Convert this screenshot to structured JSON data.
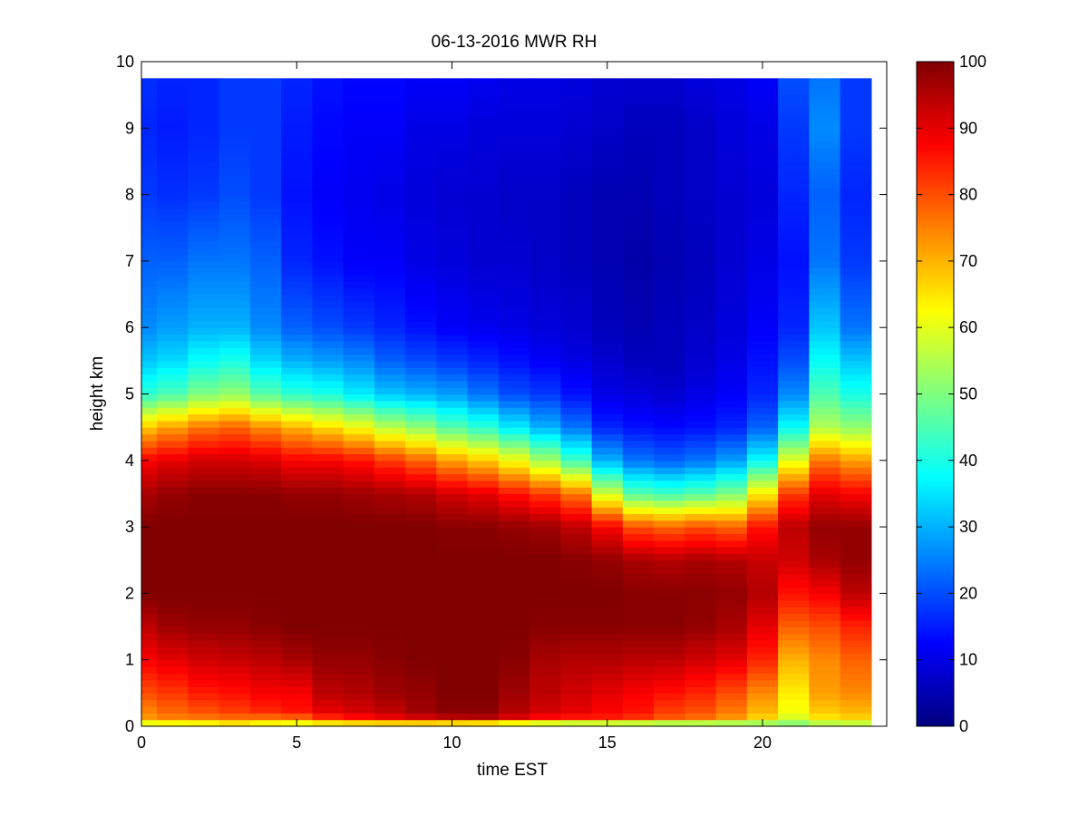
{
  "chart_data": {
    "type": "heatmap",
    "title": "06-13-2016 MWR RH",
    "xlabel": "time EST",
    "ylabel": "height km",
    "xlim": [
      0,
      24
    ],
    "ylim": [
      0,
      10
    ],
    "x_ticks": [
      "0",
      "5",
      "10",
      "15",
      "20"
    ],
    "y_ticks": [
      "0",
      "1",
      "2",
      "3",
      "4",
      "5",
      "6",
      "7",
      "8",
      "9",
      "10"
    ],
    "colorbar": {
      "range": [
        0,
        100
      ],
      "ticks": [
        "0",
        "10",
        "20",
        "30",
        "40",
        "50",
        "60",
        "70",
        "80",
        "90",
        "100"
      ],
      "colormap": "jet"
    },
    "x_bin_width_h": 1,
    "data_top_km": 9.75,
    "note_profiles": "Each column is one hourly RH profile (%) given at reference heights in km; intermediate heights are interpolated.",
    "profile_heights_km": [
      0,
      0.1,
      0.25,
      0.5,
      1,
      1.5,
      2,
      2.5,
      3,
      3.5,
      4,
      4.5,
      5,
      5.5,
      6,
      7,
      8,
      9,
      9.75
    ],
    "profiles": [
      {
        "hour": 0,
        "rh": [
          50,
          72,
          75,
          80,
          88,
          94,
          100,
          100,
          100,
          96,
          88,
          68,
          42,
          32,
          26,
          22,
          18,
          16,
          17
        ]
      },
      {
        "hour": 1,
        "rh": [
          52,
          74,
          78,
          82,
          90,
          97,
          100,
          100,
          100,
          98,
          90,
          72,
          45,
          34,
          28,
          22,
          17,
          15,
          16
        ]
      },
      {
        "hour": 2,
        "rh": [
          52,
          75,
          80,
          85,
          92,
          98,
          100,
          100,
          100,
          99,
          92,
          76,
          50,
          38,
          30,
          24,
          18,
          16,
          16
        ]
      },
      {
        "hour": 3,
        "rh": [
          55,
          76,
          82,
          86,
          93,
          98,
          100,
          100,
          100,
          99,
          92,
          78,
          52,
          40,
          30,
          24,
          20,
          18,
          18
        ]
      },
      {
        "hour": 4,
        "rh": [
          52,
          75,
          84,
          88,
          94,
          99,
          100,
          100,
          100,
          99,
          91,
          74,
          46,
          34,
          26,
          22,
          18,
          18,
          18
        ]
      },
      {
        "hour": 5,
        "rh": [
          48,
          76,
          86,
          88,
          96,
          100,
          100,
          100,
          100,
          98,
          88,
          70,
          42,
          30,
          22,
          16,
          14,
          15,
          16
        ]
      },
      {
        "hour": 6,
        "rh": [
          48,
          82,
          90,
          94,
          98,
          100,
          100,
          100,
          100,
          98,
          88,
          66,
          40,
          28,
          20,
          14,
          12,
          13,
          14
        ]
      },
      {
        "hour": 7,
        "rh": [
          48,
          85,
          92,
          95,
          98,
          100,
          100,
          100,
          100,
          97,
          86,
          62,
          36,
          26,
          18,
          12,
          11,
          12,
          13
        ]
      },
      {
        "hour": 8,
        "rh": [
          46,
          88,
          94,
          97,
          99,
          100,
          100,
          100,
          100,
          96,
          82,
          56,
          32,
          22,
          16,
          12,
          10,
          12,
          13
        ]
      },
      {
        "hour": 9,
        "rh": [
          45,
          90,
          97,
          98,
          100,
          100,
          100,
          100,
          100,
          95,
          78,
          52,
          30,
          20,
          14,
          10,
          9,
          10,
          12
        ]
      },
      {
        "hour": 10,
        "rh": [
          40,
          93,
          99,
          100,
          100,
          100,
          100,
          100,
          99,
          92,
          72,
          46,
          28,
          18,
          12,
          9,
          8,
          10,
          12
        ]
      },
      {
        "hour": 11,
        "rh": [
          38,
          94,
          99,
          100,
          100,
          100,
          100,
          100,
          99,
          90,
          68,
          42,
          24,
          16,
          11,
          8,
          8,
          9,
          11
        ]
      },
      {
        "hour": 12,
        "rh": [
          36,
          90,
          95,
          97,
          99,
          100,
          100,
          100,
          98,
          86,
          62,
          36,
          20,
          14,
          10,
          8,
          7,
          9,
          10
        ]
      },
      {
        "hour": 13,
        "rh": [
          34,
          86,
          92,
          94,
          96,
          99,
          100,
          100,
          97,
          82,
          54,
          30,
          18,
          12,
          9,
          7,
          7,
          9,
          10
        ]
      },
      {
        "hour": 14,
        "rh": [
          32,
          84,
          90,
          92,
          95,
          99,
          100,
          99,
          94,
          76,
          44,
          24,
          14,
          10,
          8,
          6,
          6,
          8,
          9
        ]
      },
      {
        "hour": 15,
        "rh": [
          32,
          84,
          88,
          90,
          95,
          99,
          100,
          98,
          88,
          58,
          30,
          16,
          10,
          8,
          6,
          5,
          5,
          7,
          8
        ]
      },
      {
        "hour": 16,
        "rh": [
          33,
          82,
          86,
          88,
          94,
          99,
          99,
          96,
          80,
          46,
          24,
          14,
          9,
          6,
          5,
          4,
          5,
          6,
          8
        ]
      },
      {
        "hour": 17,
        "rh": [
          34,
          78,
          82,
          86,
          94,
          99,
          99,
          95,
          78,
          44,
          22,
          13,
          8,
          6,
          6,
          5,
          6,
          6,
          8
        ]
      },
      {
        "hour": 18,
        "rh": [
          36,
          76,
          80,
          84,
          92,
          98,
          99,
          96,
          80,
          46,
          24,
          14,
          10,
          8,
          7,
          6,
          7,
          7,
          9
        ]
      },
      {
        "hour": 19,
        "rh": [
          38,
          72,
          76,
          80,
          90,
          96,
          98,
          95,
          78,
          50,
          28,
          16,
          12,
          10,
          9,
          8,
          8,
          9,
          10
        ]
      },
      {
        "hour": 20,
        "rh": [
          42,
          66,
          70,
          74,
          84,
          90,
          95,
          93,
          86,
          64,
          38,
          22,
          16,
          14,
          12,
          10,
          9,
          10,
          12
        ]
      },
      {
        "hour": 21,
        "rh": [
          45,
          58,
          62,
          64,
          70,
          78,
          86,
          92,
          94,
          82,
          60,
          38,
          26,
          20,
          16,
          14,
          16,
          18,
          20
        ]
      },
      {
        "hour": 22,
        "rh": [
          48,
          64,
          68,
          72,
          74,
          80,
          88,
          96,
          98,
          90,
          76,
          55,
          45,
          38,
          32,
          24,
          22,
          26,
          24
        ]
      },
      {
        "hour": 23,
        "rh": [
          48,
          66,
          70,
          74,
          78,
          84,
          94,
          98,
          98,
          88,
          72,
          52,
          40,
          32,
          24,
          18,
          16,
          18,
          18
        ]
      }
    ]
  }
}
